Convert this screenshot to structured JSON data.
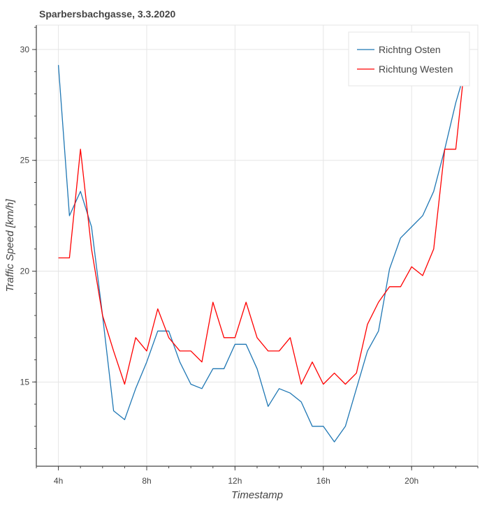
{
  "chart_data": {
    "type": "line",
    "title": "Sparbersbachgasse, 3.3.2020",
    "xlabel": "Timestamp",
    "ylabel": "Traffic Speed [km/h]",
    "x_ticks": [
      "4h",
      "8h",
      "12h",
      "16h",
      "20h"
    ],
    "y_ticks": [
      15,
      20,
      25,
      30
    ],
    "xlim": [
      3,
      23
    ],
    "ylim": [
      11.2,
      31.1
    ],
    "grid": true,
    "legend_position": "top-right",
    "x": [
      4,
      4.5,
      5,
      5.5,
      6,
      6.5,
      7,
      7.5,
      8,
      8.5,
      9,
      9.5,
      10,
      10.5,
      11,
      11.5,
      12,
      12.5,
      13,
      13.5,
      14,
      14.5,
      15,
      15.5,
      16,
      16.5,
      17,
      17.5,
      18,
      18.5,
      19,
      19.5,
      20,
      20.5,
      21,
      21.5,
      22,
      22.5
    ],
    "series": [
      {
        "name": "Richtng Osten",
        "color": "#1f77b4",
        "values": [
          29.3,
          22.5,
          23.6,
          22.0,
          18.0,
          13.7,
          13.3,
          14.7,
          15.9,
          17.3,
          17.3,
          15.9,
          14.9,
          14.7,
          15.6,
          15.6,
          16.7,
          16.7,
          15.6,
          13.9,
          14.7,
          14.5,
          14.1,
          13.0,
          13.0,
          12.3,
          13.0,
          14.7,
          16.4,
          17.3,
          20.1,
          21.5,
          22.0,
          22.5,
          23.6,
          25.5,
          27.6,
          29.3
        ]
      },
      {
        "name": "Richtung Westen",
        "color": "#ff0000",
        "values": [
          20.6,
          20.6,
          25.5,
          21.0,
          18.0,
          16.4,
          14.9,
          17.0,
          16.4,
          18.3,
          17.0,
          16.4,
          16.4,
          15.9,
          18.6,
          17.0,
          17.0,
          18.6,
          17.0,
          16.4,
          16.4,
          17.0,
          14.9,
          15.9,
          14.9,
          15.4,
          14.9,
          15.4,
          17.6,
          18.6,
          19.3,
          19.3,
          20.2,
          19.8,
          21.0,
          25.5,
          25.5,
          30.2
        ]
      }
    ]
  }
}
